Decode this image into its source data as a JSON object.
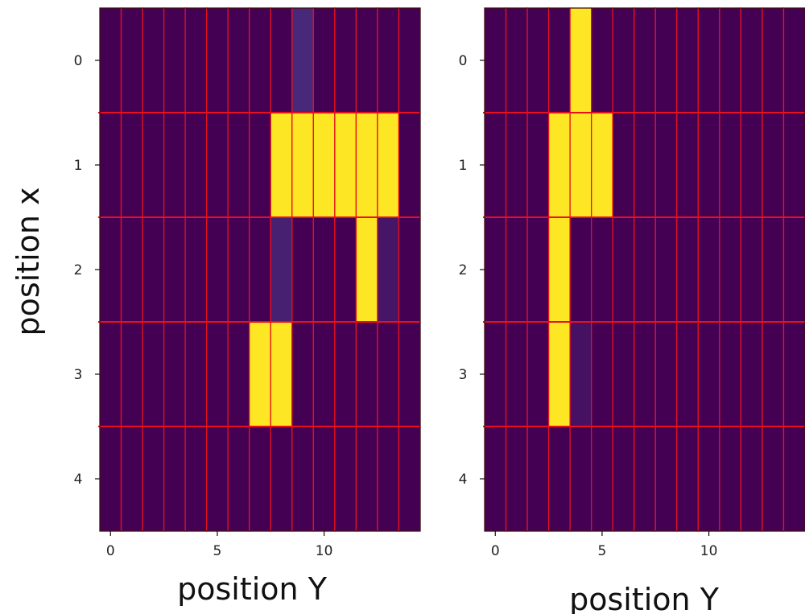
{
  "chart_data": [
    {
      "type": "heatmap",
      "title": "",
      "xlabel": "position Y",
      "ylabel": "position x",
      "x_ticks": [
        0,
        5,
        10
      ],
      "y_ticks": [
        0,
        1,
        2,
        3,
        4
      ],
      "xlim": [
        -0.5,
        14.5
      ],
      "ylim": [
        4.5,
        -0.5
      ],
      "n_cols": 15,
      "n_rows": 5,
      "grid": true,
      "grid_color": "#e8101c",
      "colormap": "viridis",
      "cells": [
        [
          0,
          0,
          0,
          0,
          0,
          0,
          0,
          0,
          0,
          0.1,
          0,
          0,
          0,
          0,
          0
        ],
        [
          0,
          0,
          0,
          0,
          0,
          0,
          0,
          0,
          1,
          1,
          1,
          1,
          1,
          1,
          0
        ],
        [
          0,
          0,
          0,
          0,
          0,
          0,
          0,
          0,
          0.08,
          0,
          0,
          0,
          1,
          0.05,
          0
        ],
        [
          0,
          0,
          0,
          0,
          0,
          0,
          0,
          1,
          1,
          0,
          0,
          0,
          0,
          0,
          0
        ],
        [
          0,
          0,
          0,
          0,
          0,
          0,
          0,
          0,
          0,
          0,
          0,
          0,
          0,
          0,
          0
        ]
      ]
    },
    {
      "type": "heatmap",
      "title": "",
      "xlabel": "position Y",
      "ylabel": "",
      "x_ticks": [
        0,
        5,
        10
      ],
      "y_ticks": [
        0,
        1,
        2,
        3,
        4
      ],
      "xlim": [
        -0.5,
        14.5
      ],
      "ylim": [
        4.5,
        -0.5
      ],
      "n_cols": 15,
      "n_rows": 5,
      "grid": true,
      "grid_color": "#e8101c",
      "colormap": "viridis",
      "cells": [
        [
          0,
          0,
          0,
          0,
          1,
          0,
          0,
          0,
          0,
          0,
          0,
          0,
          0,
          0,
          0
        ],
        [
          0,
          0,
          0,
          1,
          1,
          1,
          0,
          0,
          0,
          0,
          0,
          0,
          0,
          0,
          0
        ],
        [
          0,
          0,
          0,
          1,
          0,
          0,
          0,
          0,
          0,
          0,
          0,
          0,
          0,
          0,
          0
        ],
        [
          0,
          0,
          0,
          1,
          0.04,
          0,
          0,
          0,
          0,
          0,
          0,
          0,
          0,
          0,
          0
        ],
        [
          0,
          0,
          0,
          0,
          0,
          0,
          0,
          0,
          0,
          0,
          0,
          0,
          0,
          0,
          0
        ]
      ]
    }
  ],
  "colors": {
    "low": "#440154",
    "mid": "#482878",
    "high": "#fde725",
    "grid": "#e8101c",
    "axis": "#111111"
  }
}
